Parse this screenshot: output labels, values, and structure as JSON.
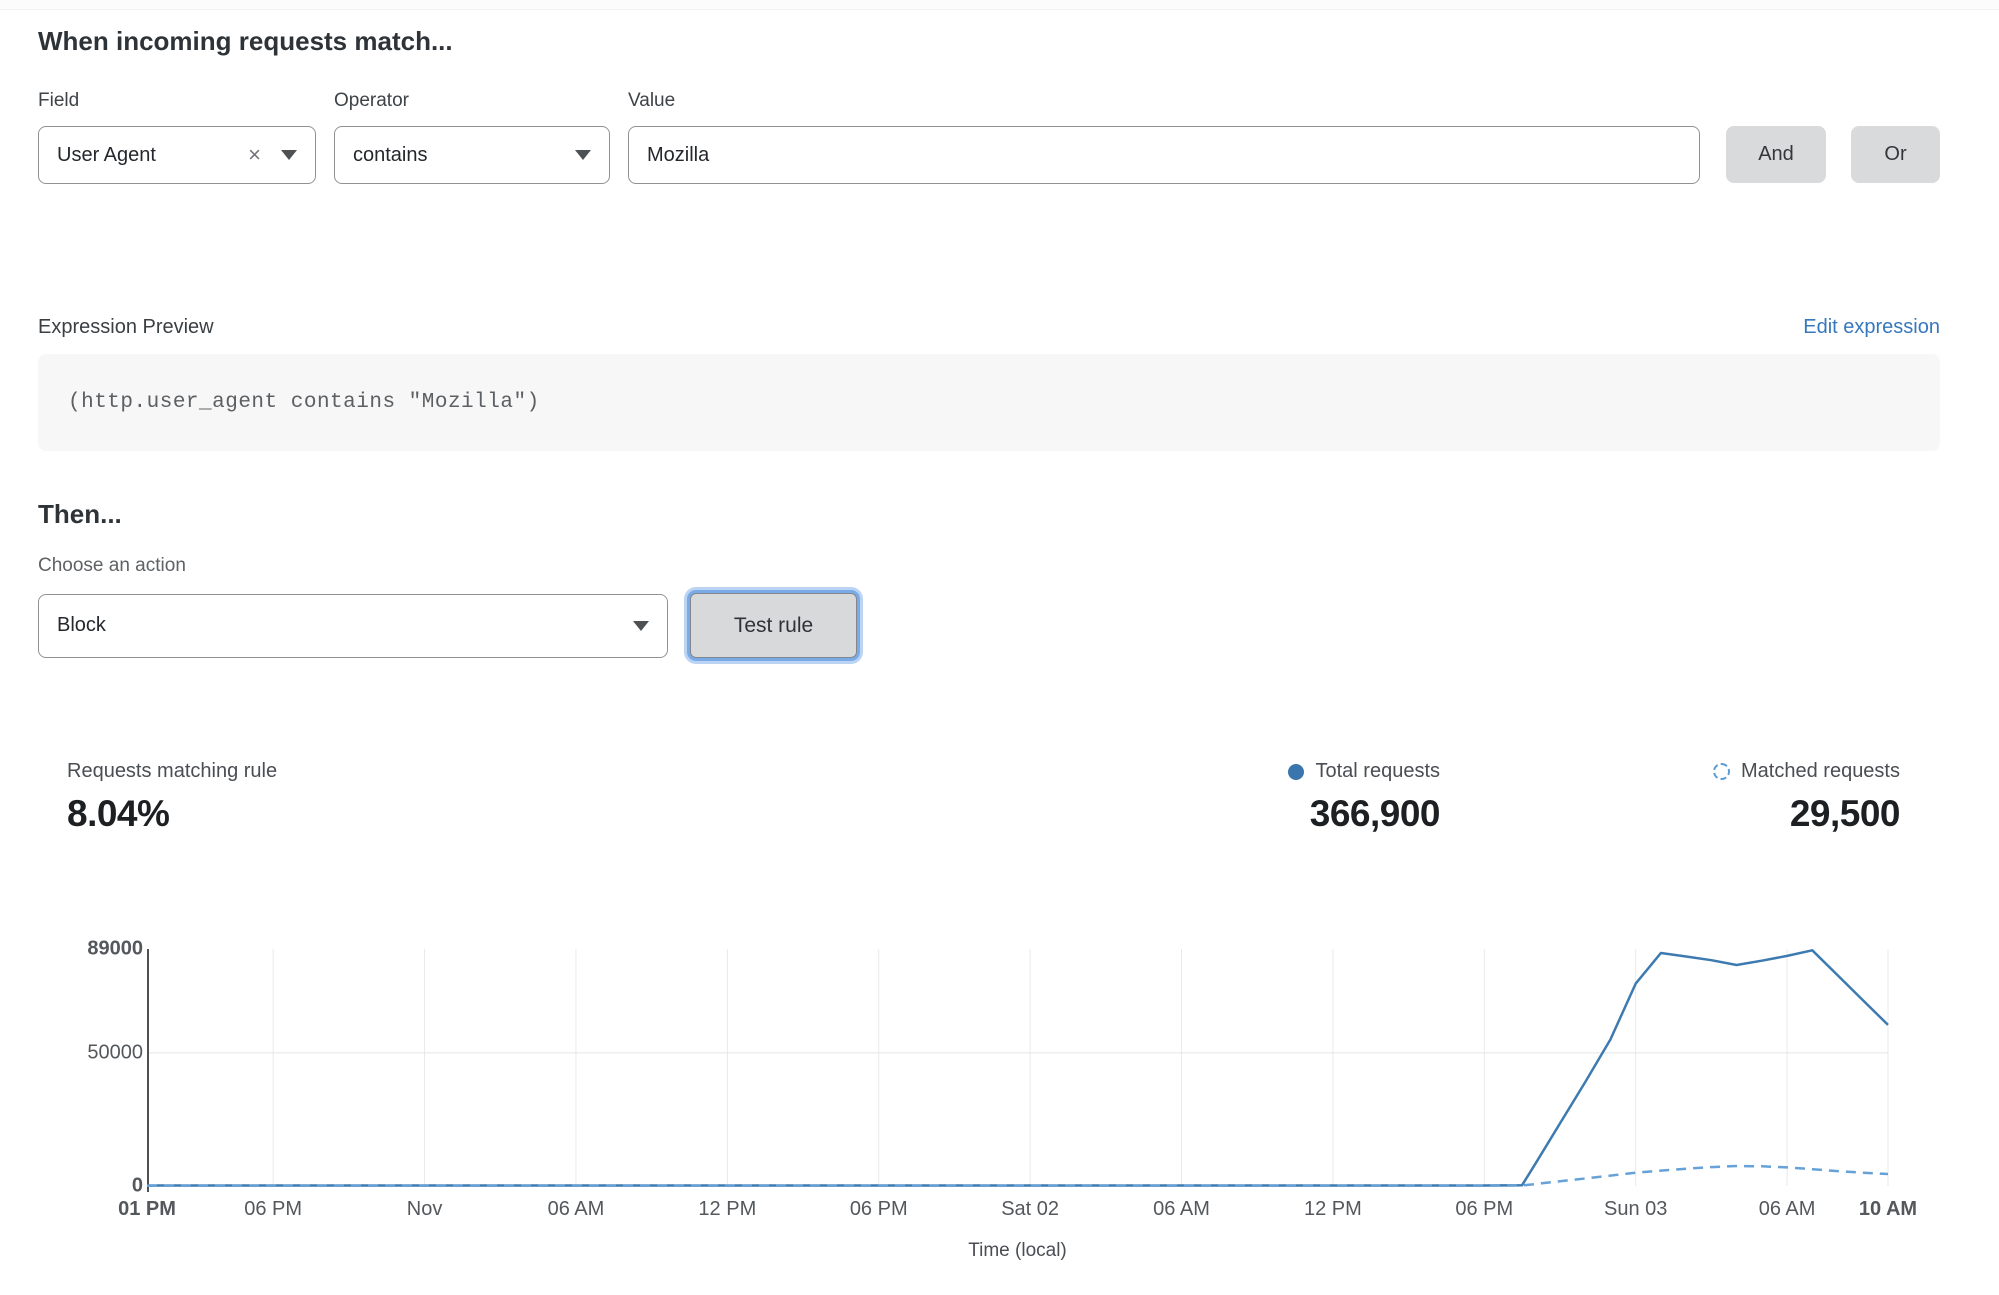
{
  "page": {
    "match_title": "When incoming requests match...",
    "then_title": "Then..."
  },
  "colors": {
    "accent_link": "#3678bd",
    "chart_solid": "#3d7ab0",
    "chart_dashed": "#66a1d7",
    "legend_dot": "#3a76ad"
  },
  "icons": {
    "field_clear": "x-mark",
    "select_caret": "chevron-down",
    "total_legend": "solid-dot",
    "matched_legend": "dashed-circle"
  },
  "rule_builder": {
    "field": {
      "label": "Field",
      "value": "User Agent"
    },
    "operator": {
      "label": "Operator",
      "value": "contains"
    },
    "value": {
      "label": "Value",
      "value": "Mozilla"
    },
    "and_label": "And",
    "or_label": "Or"
  },
  "expression": {
    "label": "Expression Preview",
    "edit_link": "Edit expression",
    "code": "(http.user_agent contains \"Mozilla\")"
  },
  "action": {
    "label": "Choose an action",
    "value": "Block",
    "test_button": "Test rule"
  },
  "stats": {
    "matching": {
      "label": "Requests matching rule",
      "value": "8.04%"
    },
    "total": {
      "label": "Total requests",
      "value": "366,900"
    },
    "matched": {
      "label": "Matched requests",
      "value": "29,500"
    }
  },
  "chart_data": {
    "type": "line",
    "title": "",
    "xlabel": "Time (local)",
    "ylabel": "",
    "ylim": [
      0,
      89000
    ],
    "x_total_hours": 69,
    "grid": "vertical-per-tick plus horizontal at 50000",
    "legend_position": "above-right as stats",
    "yticks": [
      {
        "label": "89000",
        "value": 89000,
        "bold": true
      },
      {
        "label": "50000",
        "value": 50000,
        "bold": false
      },
      {
        "label": "0",
        "value": 0,
        "bold": true
      }
    ],
    "xticks": [
      {
        "label": "01 PM",
        "hour": 0,
        "bold": true
      },
      {
        "label": "06 PM",
        "hour": 5,
        "bold": false
      },
      {
        "label": "Nov",
        "hour": 11,
        "bold": false
      },
      {
        "label": "06 AM",
        "hour": 17,
        "bold": false
      },
      {
        "label": "12 PM",
        "hour": 23,
        "bold": false
      },
      {
        "label": "06 PM",
        "hour": 29,
        "bold": false
      },
      {
        "label": "Sat 02",
        "hour": 35,
        "bold": false
      },
      {
        "label": "06 AM",
        "hour": 41,
        "bold": false
      },
      {
        "label": "12 PM",
        "hour": 47,
        "bold": false
      },
      {
        "label": "06 PM",
        "hour": 53,
        "bold": false
      },
      {
        "label": "Sun 03",
        "hour": 59,
        "bold": false
      },
      {
        "label": "06 AM",
        "hour": 65,
        "bold": false
      },
      {
        "label": "10 AM",
        "hour": 69,
        "bold": true
      }
    ],
    "series": [
      {
        "name": "Total requests",
        "style": "solid",
        "color": "#3d7ab0",
        "points": [
          [
            0,
            200
          ],
          [
            5,
            200
          ],
          [
            11,
            200
          ],
          [
            17,
            200
          ],
          [
            23,
            200
          ],
          [
            29,
            200
          ],
          [
            35,
            200
          ],
          [
            41,
            200
          ],
          [
            47,
            200
          ],
          [
            53,
            200
          ],
          [
            54.5,
            300
          ],
          [
            55,
            8000
          ],
          [
            56,
            23500
          ],
          [
            57,
            39000
          ],
          [
            58,
            55000
          ],
          [
            59,
            76000
          ],
          [
            60,
            87500
          ],
          [
            61,
            86200
          ],
          [
            62,
            84800
          ],
          [
            63,
            83000
          ],
          [
            64,
            84600
          ],
          [
            65,
            86400
          ],
          [
            66,
            88500
          ],
          [
            67,
            79200
          ],
          [
            68,
            69800
          ],
          [
            69,
            60500
          ]
        ]
      },
      {
        "name": "Matched requests",
        "style": "dashed",
        "color": "#66a1d7",
        "points": [
          [
            0,
            100
          ],
          [
            5,
            100
          ],
          [
            11,
            100
          ],
          [
            17,
            100
          ],
          [
            23,
            100
          ],
          [
            29,
            100
          ],
          [
            35,
            100
          ],
          [
            41,
            100
          ],
          [
            47,
            100
          ],
          [
            53,
            100
          ],
          [
            54.5,
            200
          ],
          [
            55,
            700
          ],
          [
            56,
            1800
          ],
          [
            57,
            2800
          ],
          [
            58,
            3900
          ],
          [
            59,
            5000
          ],
          [
            60,
            5800
          ],
          [
            61,
            6500
          ],
          [
            62,
            7100
          ],
          [
            63,
            7500
          ],
          [
            64,
            7400
          ],
          [
            65,
            7000
          ],
          [
            66,
            6300
          ],
          [
            67,
            5600
          ],
          [
            68,
            5000
          ],
          [
            69,
            4500
          ]
        ]
      }
    ]
  }
}
